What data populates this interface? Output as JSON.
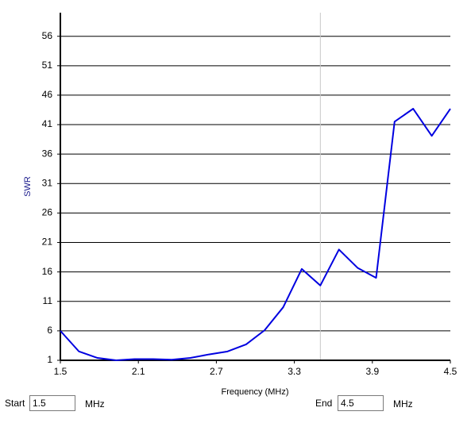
{
  "chart_data": {
    "type": "line",
    "y_label": "SWR",
    "x_label": "Frequency (MHz)",
    "x": [
      1.5,
      1.643,
      1.786,
      1.929,
      2.071,
      2.214,
      2.357,
      2.5,
      2.643,
      2.786,
      2.929,
      3.071,
      3.214,
      3.357,
      3.5,
      3.643,
      3.786,
      3.929,
      4.071,
      4.214,
      4.357,
      4.5
    ],
    "values": [
      6,
      2.5,
      1.4,
      1.0,
      1.2,
      1.2,
      1.1,
      1.4,
      2.0,
      2.5,
      3.7,
      6.1,
      10,
      16.5,
      13.7,
      19.8,
      16.7,
      15.0,
      41.5,
      43.7,
      39.1,
      43.7
    ],
    "color": "#0000e0",
    "xlim": [
      1.5,
      4.5
    ],
    "xticks": [
      1.5,
      2.1,
      2.7,
      3.3,
      3.9,
      4.5
    ],
    "ylim": [
      1,
      60
    ],
    "yticks": [
      1,
      6,
      11,
      16,
      21,
      26,
      31,
      36,
      41,
      46,
      51,
      56
    ],
    "grid": true,
    "marker_x": 3.5
  },
  "controls": {
    "start_label": "Start",
    "start_value": "1.5",
    "start_unit": "MHz",
    "end_label": "End",
    "end_value": "4.5",
    "end_unit": "MHz"
  }
}
